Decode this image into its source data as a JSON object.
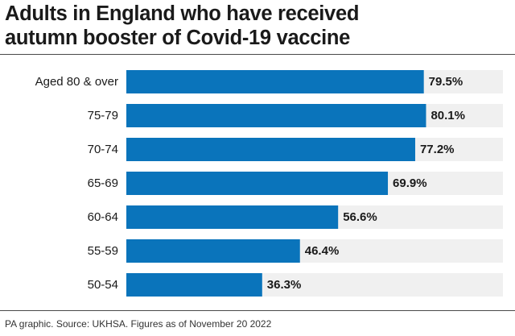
{
  "title_line1": "Adults in England who have received",
  "title_line2": "autumn booster of Covid-19 vaccine",
  "source": "PA graphic. Source: UKHSA. Figures as of November 20 2022",
  "colors": {
    "bar": "#0a74bb",
    "track": "#f0f0f0",
    "text": "#1a1a1a"
  },
  "chart_data": {
    "type": "bar",
    "orientation": "horizontal",
    "categories": [
      "Aged 80 & over",
      "75-79",
      "70-74",
      "65-69",
      "60-64",
      "55-59",
      "50-54"
    ],
    "values": [
      79.5,
      80.1,
      77.2,
      69.9,
      56.6,
      46.4,
      36.3
    ],
    "value_labels": [
      "79.5%",
      "80.1%",
      "77.2%",
      "69.9%",
      "56.6%",
      "46.4%",
      "36.3%"
    ],
    "xlim": [
      0,
      100
    ],
    "grid": false,
    "legend": "none"
  }
}
